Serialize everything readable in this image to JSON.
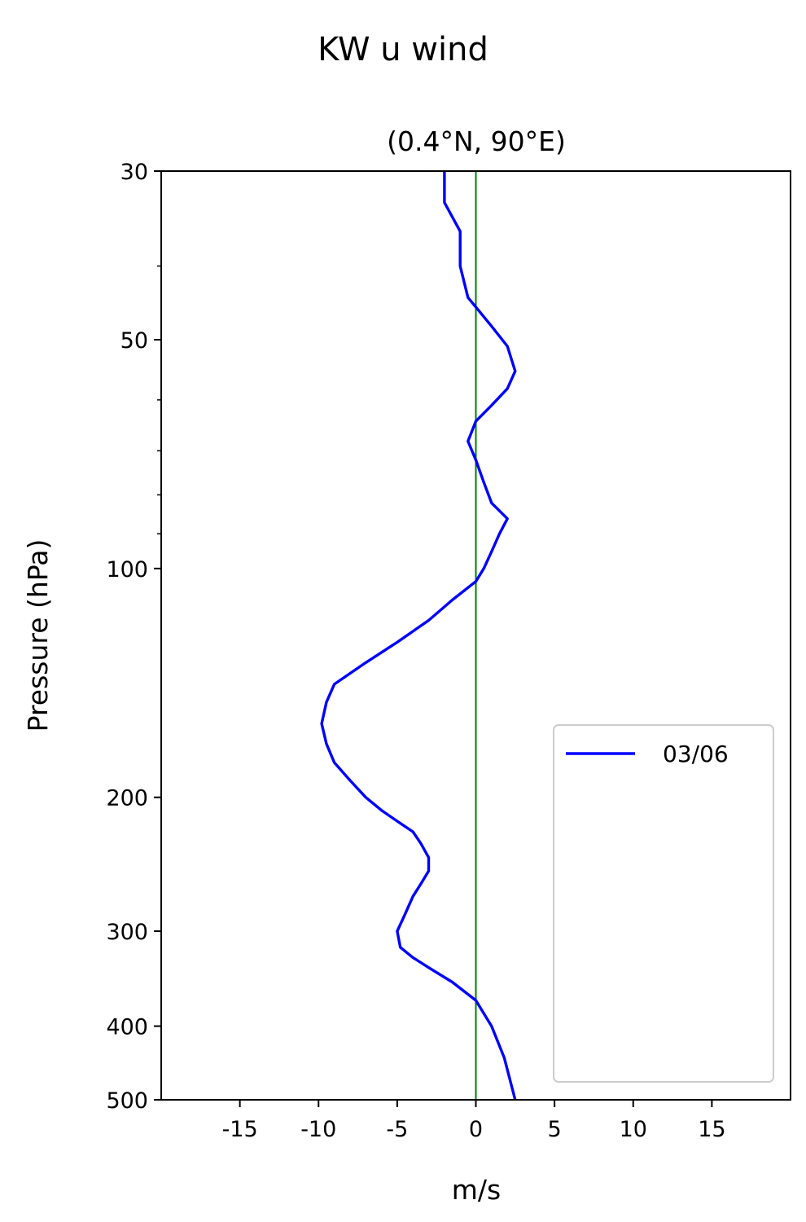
{
  "chart_data": {
    "type": "line",
    "title": "KW u wind",
    "subtitle": "(0.4°N, 90°E)",
    "xlabel": "m/s",
    "ylabel": "Pressure (hPa)",
    "xlim": [
      -20,
      20
    ],
    "ylim": [
      500,
      30
    ],
    "yscale": "log",
    "xticks": [
      -15,
      -10,
      -5,
      0,
      5,
      10,
      15
    ],
    "xtick_labels": [
      "-15",
      "-10",
      "-5",
      "0",
      "5",
      "10",
      "15"
    ],
    "yticks": [
      30,
      50,
      100,
      200,
      300,
      400,
      500
    ],
    "ytick_labels": [
      "30",
      "50",
      "100",
      "200",
      "300",
      "400",
      "500"
    ],
    "y_minor_ticks": [
      40,
      60,
      70,
      80,
      90
    ],
    "zero_line": {
      "x": 0,
      "color": "#008000"
    },
    "grid": false,
    "legend_position": "lower-right",
    "series": [
      {
        "name": "03/06",
        "color": "#0000ff",
        "x": [
          -2,
          -2,
          -1,
          -1,
          -0.5,
          1,
          2,
          2.5,
          2,
          1,
          0,
          -0.5,
          0,
          0.5,
          1,
          2,
          1.5,
          1,
          0.5,
          0,
          -1.5,
          -3,
          -5,
          -7,
          -9,
          -9.5,
          -9.8,
          -9.5,
          -9,
          -8,
          -7,
          -6,
          -5,
          -4,
          -3.5,
          -3,
          -3,
          -3.5,
          -4,
          -4.5,
          -5,
          -4.8,
          -4,
          -3,
          -1.5,
          0,
          1,
          1.8,
          2.5
        ],
        "y": [
          30,
          33,
          36,
          40,
          44,
          48,
          51,
          55,
          58,
          61,
          64,
          68,
          72,
          77,
          82,
          86,
          90,
          95,
          100,
          104,
          110,
          117,
          125,
          133,
          142,
          150,
          160,
          170,
          180,
          190,
          200,
          208,
          215,
          222,
          230,
          240,
          250,
          260,
          270,
          285,
          300,
          315,
          325,
          335,
          350,
          370,
          400,
          440,
          500
        ]
      }
    ]
  }
}
